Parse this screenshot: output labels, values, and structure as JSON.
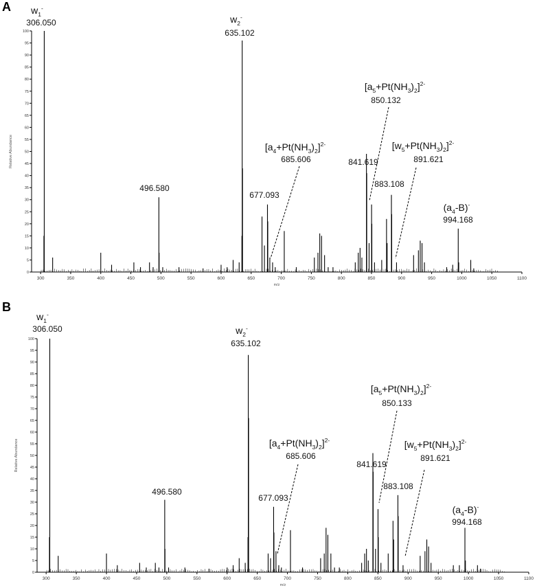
{
  "chart_data": [
    {
      "panel": "A",
      "type": "bar",
      "xlabel": "m/z",
      "ylabel": "Relative Abundance",
      "xlim": [
        285,
        1100
      ],
      "ylim": [
        0,
        100
      ],
      "xticks": [
        300,
        350,
        400,
        450,
        500,
        550,
        600,
        650,
        700,
        750,
        800,
        850,
        900,
        950,
        1000,
        1050,
        1100
      ],
      "yticks": [
        0,
        5,
        10,
        15,
        20,
        25,
        30,
        35,
        40,
        45,
        50,
        55,
        60,
        65,
        70,
        75,
        80,
        85,
        90,
        95,
        100
      ],
      "peaks": [
        {
          "x": 306.05,
          "y": 100
        },
        {
          "x": 305.5,
          "y": 15
        },
        {
          "x": 320,
          "y": 6
        },
        {
          "x": 400,
          "y": 8
        },
        {
          "x": 418,
          "y": 3
        },
        {
          "x": 455,
          "y": 4
        },
        {
          "x": 466,
          "y": 2
        },
        {
          "x": 481,
          "y": 4
        },
        {
          "x": 487,
          "y": 2
        },
        {
          "x": 496.58,
          "y": 31
        },
        {
          "x": 497,
          "y": 8
        },
        {
          "x": 503,
          "y": 2
        },
        {
          "x": 530,
          "y": 2
        },
        {
          "x": 570,
          "y": 1.5
        },
        {
          "x": 600,
          "y": 3
        },
        {
          "x": 610,
          "y": 2
        },
        {
          "x": 620,
          "y": 5
        },
        {
          "x": 630,
          "y": 4
        },
        {
          "x": 634.6,
          "y": 15
        },
        {
          "x": 635.1,
          "y": 96
        },
        {
          "x": 635.6,
          "y": 43
        },
        {
          "x": 668,
          "y": 23
        },
        {
          "x": 672,
          "y": 11
        },
        {
          "x": 677.09,
          "y": 28
        },
        {
          "x": 677.6,
          "y": 21
        },
        {
          "x": 681,
          "y": 6
        },
        {
          "x": 685.61,
          "y": 4
        },
        {
          "x": 690,
          "y": 2
        },
        {
          "x": 705,
          "y": 17
        },
        {
          "x": 725,
          "y": 2
        },
        {
          "x": 755,
          "y": 6
        },
        {
          "x": 761,
          "y": 8
        },
        {
          "x": 764,
          "y": 16
        },
        {
          "x": 767,
          "y": 15
        },
        {
          "x": 772,
          "y": 7
        },
        {
          "x": 778,
          "y": 2
        },
        {
          "x": 786,
          "y": 2
        },
        {
          "x": 823,
          "y": 4
        },
        {
          "x": 828,
          "y": 8
        },
        {
          "x": 831,
          "y": 10
        },
        {
          "x": 834,
          "y": 6
        },
        {
          "x": 841.62,
          "y": 49
        },
        {
          "x": 842.1,
          "y": 41
        },
        {
          "x": 846,
          "y": 12
        },
        {
          "x": 850.13,
          "y": 28
        },
        {
          "x": 850.6,
          "y": 20
        },
        {
          "x": 855,
          "y": 4
        },
        {
          "x": 867,
          "y": 5
        },
        {
          "x": 875,
          "y": 22
        },
        {
          "x": 876,
          "y": 12
        },
        {
          "x": 883.11,
          "y": 32
        },
        {
          "x": 883.6,
          "y": 24
        },
        {
          "x": 891.62,
          "y": 4
        },
        {
          "x": 920,
          "y": 7
        },
        {
          "x": 928,
          "y": 9
        },
        {
          "x": 931,
          "y": 13
        },
        {
          "x": 934,
          "y": 12
        },
        {
          "x": 938,
          "y": 4
        },
        {
          "x": 975,
          "y": 2
        },
        {
          "x": 985,
          "y": 3
        },
        {
          "x": 994.17,
          "y": 18
        },
        {
          "x": 995,
          "y": 4
        },
        {
          "x": 1015,
          "y": 5
        },
        {
          "x": 1020,
          "y": 1.5
        }
      ],
      "annotations": [
        {
          "ion": "w1",
          "charge": "-",
          "mz": "306.050"
        },
        {
          "ion": "w2",
          "charge": "-",
          "mz": "635.102"
        },
        {
          "ion": "",
          "charge": "",
          "mz": "496.580"
        },
        {
          "ion": "",
          "charge": "",
          "mz": "677.093"
        },
        {
          "ion": "[a4+Pt(NH3)2]",
          "charge": "2-",
          "mz": "685.606"
        },
        {
          "ion": "",
          "charge": "",
          "mz": "841.619"
        },
        {
          "ion": "[a5+Pt(NH3)2]",
          "charge": "2-",
          "mz": "850.132"
        },
        {
          "ion": "",
          "charge": "",
          "mz": "883.108"
        },
        {
          "ion": "[w5+Pt(NH3)2]",
          "charge": "2-",
          "mz": "891.621"
        },
        {
          "ion": "(a4-B)",
          "charge": "-",
          "mz": "994.168"
        }
      ]
    },
    {
      "panel": "B",
      "type": "bar",
      "xlabel": "m/z",
      "ylabel": "Relative Abundance",
      "xlim": [
        285,
        1100
      ],
      "ylim": [
        0,
        100
      ],
      "xticks": [
        300,
        350,
        400,
        450,
        500,
        550,
        600,
        650,
        700,
        750,
        800,
        850,
        900,
        950,
        1000,
        1050,
        1100
      ],
      "yticks": [
        0,
        5,
        10,
        15,
        20,
        25,
        30,
        35,
        40,
        45,
        50,
        55,
        60,
        65,
        70,
        75,
        80,
        85,
        90,
        95,
        100
      ],
      "peaks": [
        {
          "x": 306.05,
          "y": 100
        },
        {
          "x": 305.5,
          "y": 15
        },
        {
          "x": 320,
          "y": 7
        },
        {
          "x": 400,
          "y": 8
        },
        {
          "x": 418,
          "y": 3
        },
        {
          "x": 455,
          "y": 4
        },
        {
          "x": 466,
          "y": 2
        },
        {
          "x": 481,
          "y": 4
        },
        {
          "x": 487,
          "y": 2
        },
        {
          "x": 496.58,
          "y": 31
        },
        {
          "x": 497,
          "y": 10
        },
        {
          "x": 503,
          "y": 2
        },
        {
          "x": 530,
          "y": 2
        },
        {
          "x": 570,
          "y": 1.5
        },
        {
          "x": 600,
          "y": 2
        },
        {
          "x": 610,
          "y": 3
        },
        {
          "x": 620,
          "y": 6
        },
        {
          "x": 630,
          "y": 4
        },
        {
          "x": 634.6,
          "y": 15
        },
        {
          "x": 635.1,
          "y": 93
        },
        {
          "x": 635.6,
          "y": 66
        },
        {
          "x": 668,
          "y": 8
        },
        {
          "x": 672,
          "y": 6
        },
        {
          "x": 677.09,
          "y": 28
        },
        {
          "x": 677.6,
          "y": 17
        },
        {
          "x": 681,
          "y": 9
        },
        {
          "x": 685.61,
          "y": 3
        },
        {
          "x": 690,
          "y": 2
        },
        {
          "x": 705,
          "y": 18
        },
        {
          "x": 725,
          "y": 2
        },
        {
          "x": 755,
          "y": 6
        },
        {
          "x": 761,
          "y": 8
        },
        {
          "x": 764,
          "y": 19
        },
        {
          "x": 767,
          "y": 16
        },
        {
          "x": 772,
          "y": 8
        },
        {
          "x": 778,
          "y": 2
        },
        {
          "x": 786,
          "y": 2
        },
        {
          "x": 823,
          "y": 4
        },
        {
          "x": 828,
          "y": 8
        },
        {
          "x": 831,
          "y": 10
        },
        {
          "x": 834,
          "y": 5
        },
        {
          "x": 841.62,
          "y": 51
        },
        {
          "x": 842.1,
          "y": 43
        },
        {
          "x": 846,
          "y": 10
        },
        {
          "x": 850.13,
          "y": 27
        },
        {
          "x": 850.6,
          "y": 15
        },
        {
          "x": 855,
          "y": 4
        },
        {
          "x": 867,
          "y": 8
        },
        {
          "x": 875,
          "y": 22
        },
        {
          "x": 876,
          "y": 14
        },
        {
          "x": 883.11,
          "y": 33
        },
        {
          "x": 883.6,
          "y": 24
        },
        {
          "x": 891.62,
          "y": 3
        },
        {
          "x": 920,
          "y": 7
        },
        {
          "x": 928,
          "y": 9
        },
        {
          "x": 931,
          "y": 14
        },
        {
          "x": 934,
          "y": 11
        },
        {
          "x": 938,
          "y": 4
        },
        {
          "x": 975,
          "y": 3
        },
        {
          "x": 985,
          "y": 3
        },
        {
          "x": 994.17,
          "y": 19
        },
        {
          "x": 995,
          "y": 5
        },
        {
          "x": 1015,
          "y": 3
        },
        {
          "x": 1020,
          "y": 1.5
        }
      ],
      "annotations": [
        {
          "ion": "w1",
          "charge": "-",
          "mz": "306.050"
        },
        {
          "ion": "w2",
          "charge": "-",
          "mz": "635.102"
        },
        {
          "ion": "",
          "charge": "",
          "mz": "496.580"
        },
        {
          "ion": "",
          "charge": "",
          "mz": "677.093"
        },
        {
          "ion": "[a4+Pt(NH3)2]",
          "charge": "2-",
          "mz": "685.606"
        },
        {
          "ion": "",
          "charge": "",
          "mz": "841.619"
        },
        {
          "ion": "[a5+Pt(NH3)2]",
          "charge": "2-",
          "mz": "850.133"
        },
        {
          "ion": "",
          "charge": "",
          "mz": "883.108"
        },
        {
          "ion": "[w5+Pt(NH3)2]",
          "charge": "2-",
          "mz": "891.621"
        },
        {
          "ion": "(a4-B)",
          "charge": "-",
          "mz": "994.168"
        }
      ]
    }
  ]
}
